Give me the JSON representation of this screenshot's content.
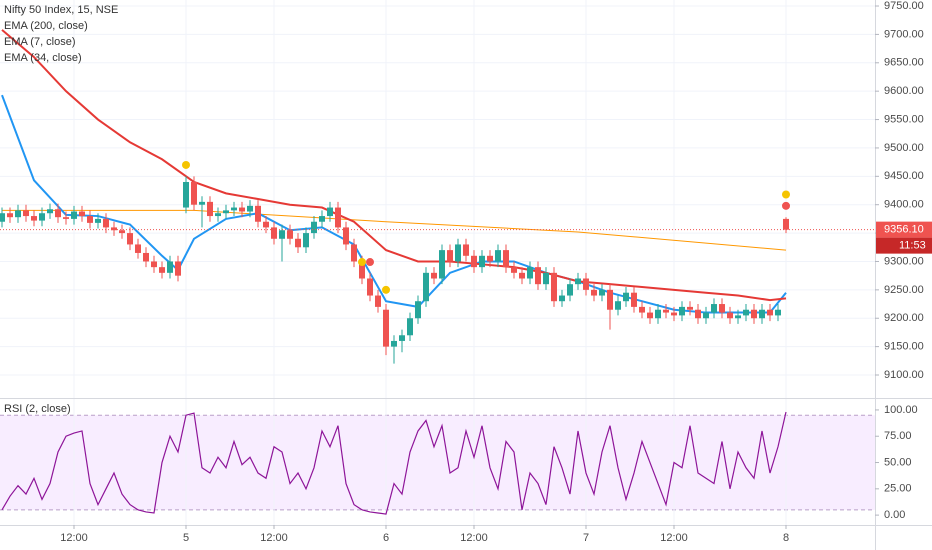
{
  "chart_data": [
    {
      "type": "candlestick",
      "title": "Nifty 50 Index, 15, NSE",
      "xlim": [
        -0.25,
        109.125
      ],
      "xticks": [
        {
          "value": 9,
          "label": "12:00"
        },
        {
          "value": 23,
          "label": "5"
        },
        {
          "value": 34,
          "label": "12:00"
        },
        {
          "value": 48,
          "label": "6"
        },
        {
          "value": 59,
          "label": "12:00"
        },
        {
          "value": 73,
          "label": "7"
        },
        {
          "value": 84,
          "label": "12:00"
        },
        {
          "value": 98,
          "label": "8"
        }
      ],
      "ylim": [
        9059.5,
        9760.6
      ],
      "yticks": [
        {
          "value": 9100,
          "label": "9100.00"
        },
        {
          "value": 9150,
          "label": "9150.00"
        },
        {
          "value": 9200,
          "label": "9200.00"
        },
        {
          "value": 9250,
          "label": "9250.00"
        },
        {
          "value": 9300,
          "label": "9300.00"
        },
        {
          "value": 9350,
          "label": "9350.00"
        },
        {
          "value": 9400,
          "label": "9400.00"
        },
        {
          "value": 9450,
          "label": "9450.00"
        },
        {
          "value": 9500,
          "label": "9500.00"
        },
        {
          "value": 9550,
          "label": "9550.00"
        },
        {
          "value": 9600,
          "label": "9600.00"
        },
        {
          "value": 9650,
          "label": "9650.00"
        },
        {
          "value": 9700,
          "label": "9700.00"
        },
        {
          "value": 9750,
          "label": "9750.00"
        }
      ],
      "grid": true,
      "up_color": "#26a69a",
      "down_color": "#ef5350",
      "open": [
        9370,
        9385,
        9378,
        9390,
        9380,
        9372,
        9385,
        9392,
        9378,
        9375,
        9388,
        9380,
        9368,
        9375,
        9360,
        9355,
        9350,
        9330,
        9315,
        9300,
        9290,
        9280,
        9300,
        9395,
        9440,
        9400,
        9405,
        9380,
        9385,
        9390,
        9395,
        9388,
        9398,
        9370,
        9360,
        9340,
        9355,
        9340,
        9325,
        9350,
        9370,
        9380,
        9395,
        9360,
        9330,
        9300,
        9270,
        9240,
        9215,
        9150,
        9160,
        9170,
        9200,
        9230,
        9280,
        9270,
        9320,
        9300,
        9330,
        9310,
        9290,
        9310,
        9300,
        9320,
        9290,
        9280,
        9270,
        9290,
        9260,
        9280,
        9230,
        9240,
        9260,
        9270,
        9250,
        9240,
        9250,
        9215,
        9230,
        9245,
        9220,
        9210,
        9200,
        9215,
        9210,
        9205,
        9220,
        9215,
        9200,
        9210,
        9225,
        9210,
        9200,
        9205,
        9215,
        9200,
        9215,
        9205,
        9375
      ],
      "high": [
        9395,
        9395,
        9400,
        9400,
        9390,
        9395,
        9402,
        9402,
        9388,
        9398,
        9398,
        9390,
        9385,
        9385,
        9370,
        9365,
        9360,
        9340,
        9325,
        9310,
        9300,
        9310,
        9310,
        9450,
        9450,
        9415,
        9415,
        9395,
        9400,
        9405,
        9405,
        9408,
        9408,
        9380,
        9370,
        9365,
        9365,
        9350,
        9360,
        9380,
        9390,
        9405,
        9405,
        9370,
        9340,
        9310,
        9280,
        9250,
        9225,
        9170,
        9180,
        9210,
        9240,
        9290,
        9290,
        9330,
        9330,
        9340,
        9340,
        9320,
        9320,
        9320,
        9330,
        9330,
        9300,
        9290,
        9300,
        9300,
        9290,
        9290,
        9250,
        9270,
        9280,
        9280,
        9260,
        9260,
        9260,
        9240,
        9255,
        9255,
        9230,
        9220,
        9225,
        9225,
        9220,
        9230,
        9230,
        9225,
        9220,
        9235,
        9235,
        9220,
        9215,
        9225,
        9225,
        9225,
        9225,
        9225,
        9378
      ],
      "low": [
        9360,
        9368,
        9368,
        9370,
        9362,
        9362,
        9375,
        9368,
        9365,
        9365,
        9370,
        9358,
        9358,
        9350,
        9345,
        9340,
        9320,
        9305,
        9290,
        9280,
        9270,
        9270,
        9265,
        9385,
        9390,
        9360,
        9370,
        9370,
        9375,
        9380,
        9378,
        9378,
        9360,
        9350,
        9330,
        9300,
        9330,
        9315,
        9315,
        9340,
        9360,
        9370,
        9350,
        9320,
        9290,
        9260,
        9230,
        9210,
        9135,
        9120,
        9140,
        9160,
        9190,
        9220,
        9260,
        9260,
        9290,
        9290,
        9300,
        9280,
        9280,
        9290,
        9290,
        9280,
        9270,
        9260,
        9260,
        9250,
        9250,
        9220,
        9220,
        9230,
        9250,
        9240,
        9230,
        9230,
        9180,
        9205,
        9220,
        9210,
        9200,
        9190,
        9190,
        9200,
        9195,
        9195,
        9205,
        9190,
        9190,
        9200,
        9200,
        9190,
        9190,
        9195,
        9190,
        9190,
        9195,
        9195,
        9350
      ],
      "close": [
        9385,
        9378,
        9390,
        9380,
        9372,
        9385,
        9392,
        9378,
        9375,
        9388,
        9380,
        9368,
        9375,
        9360,
        9355,
        9350,
        9330,
        9315,
        9300,
        9290,
        9280,
        9300,
        9275,
        9440,
        9400,
        9405,
        9380,
        9385,
        9390,
        9395,
        9388,
        9398,
        9370,
        9360,
        9340,
        9355,
        9340,
        9325,
        9350,
        9370,
        9380,
        9395,
        9360,
        9330,
        9300,
        9270,
        9240,
        9220,
        9150,
        9160,
        9170,
        9200,
        9230,
        9280,
        9270,
        9320,
        9300,
        9330,
        9310,
        9290,
        9310,
        9300,
        9320,
        9290,
        9280,
        9270,
        9290,
        9260,
        9280,
        9230,
        9240,
        9260,
        9270,
        9250,
        9240,
        9250,
        9215,
        9230,
        9245,
        9220,
        9210,
        9200,
        9215,
        9210,
        9205,
        9220,
        9215,
        9200,
        9210,
        9225,
        9210,
        9200,
        9205,
        9215,
        9200,
        9215,
        9205,
        9215,
        9356
      ],
      "series": [
        {
          "name": "EMA (200, close)",
          "color": "#ff9800",
          "x": [
            0,
            24,
            48,
            72,
            98
          ],
          "values": [
            9390,
            9390,
            9370,
            9352,
            9320
          ]
        },
        {
          "name": "EMA (7, close)",
          "color": "#2196f3",
          "x": [
            0,
            4,
            8,
            12,
            16,
            20,
            22,
            24,
            28,
            32,
            36,
            40,
            44,
            48,
            52,
            56,
            60,
            64,
            68,
            72,
            76,
            80,
            84,
            88,
            92,
            96,
            98
          ],
          "values": [
            9593,
            9443,
            9382,
            9380,
            9365,
            9310,
            9285,
            9340,
            9375,
            9385,
            9355,
            9360,
            9330,
            9230,
            9220,
            9280,
            9300,
            9300,
            9280,
            9265,
            9245,
            9230,
            9215,
            9210,
            9210,
            9210,
            9245
          ]
        },
        {
          "name": "EMA (34, close)",
          "color": "#e53935",
          "x": [
            0,
            4,
            8,
            12,
            16,
            20,
            24,
            28,
            32,
            36,
            40,
            44,
            48,
            52,
            56,
            60,
            64,
            68,
            72,
            76,
            80,
            84,
            88,
            92,
            96,
            98
          ],
          "values": [
            9708,
            9660,
            9600,
            9550,
            9510,
            9480,
            9440,
            9420,
            9410,
            9400,
            9395,
            9370,
            9320,
            9300,
            9300,
            9295,
            9290,
            9280,
            9265,
            9260,
            9255,
            9250,
            9245,
            9240,
            9232,
            9235
          ]
        }
      ],
      "markers": [
        {
          "index": 23,
          "price": 9470,
          "color": "#f5c400"
        },
        {
          "index": 45,
          "price": 9299,
          "color": "#f5c400"
        },
        {
          "index": 46,
          "price": 9299,
          "color": "#ef5350"
        },
        {
          "index": 48,
          "price": 9250,
          "color": "#f5c400"
        },
        {
          "index": 98,
          "price": 9418,
          "color": "#f5c400"
        },
        {
          "index": 98,
          "price": 9398,
          "color": "#ef5350"
        }
      ],
      "last_price": {
        "value": 9356.1,
        "label": "9356.10"
      },
      "countdown": "11:53"
    },
    {
      "type": "line",
      "title": "RSI (2, close)",
      "color": "#8e1599",
      "ylim": [
        -9.4,
        110.4
      ],
      "yticks": [
        {
          "value": 100,
          "label": "100.00"
        },
        {
          "value": 75,
          "label": "75.00"
        },
        {
          "value": 50,
          "label": "50.00"
        },
        {
          "value": 25,
          "label": "25.00"
        },
        {
          "value": 0,
          "label": "0.00"
        }
      ],
      "bands": [
        95,
        5
      ],
      "values": [
        5,
        18,
        28,
        20,
        35,
        15,
        30,
        60,
        75,
        78,
        80,
        30,
        10,
        25,
        40,
        20,
        10,
        5,
        3,
        2,
        50,
        75,
        60,
        95,
        97,
        45,
        40,
        55,
        45,
        70,
        48,
        55,
        40,
        35,
        65,
        60,
        30,
        40,
        25,
        45,
        80,
        65,
        85,
        30,
        10,
        5,
        3,
        2,
        1,
        30,
        20,
        60,
        80,
        90,
        65,
        85,
        40,
        45,
        80,
        55,
        85,
        45,
        25,
        70,
        60,
        5,
        40,
        30,
        10,
        65,
        45,
        20,
        80,
        40,
        20,
        60,
        85,
        45,
        15,
        40,
        70,
        50,
        30,
        10,
        50,
        45,
        85,
        40,
        35,
        30,
        70,
        25,
        60,
        45,
        35,
        80,
        40,
        65,
        98
      ]
    }
  ]
}
